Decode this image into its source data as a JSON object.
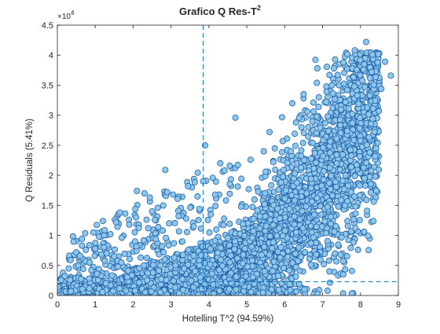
{
  "chart_data": {
    "type": "scatter",
    "title": "Grafico Q Res-T",
    "title_superscript": "2",
    "xlabel": "Hotelling T^2 (94.59%)",
    "ylabel": "Q Residuals (5.41%)",
    "xlim": [
      0,
      9
    ],
    "ylim": [
      0,
      45000
    ],
    "x_ticks": [
      0,
      1,
      2,
      3,
      4,
      5,
      6,
      7,
      8,
      9
    ],
    "y_ticks": [
      0,
      5000,
      10000,
      15000,
      20000,
      25000,
      30000,
      35000,
      40000,
      45000
    ],
    "y_tick_labels": [
      "0",
      "0.5",
      "1",
      "1.5",
      "2",
      "2.5",
      "3",
      "3.5",
      "4",
      "4.5"
    ],
    "y_exponent_prefix": "×10",
    "y_exponent_power": "4",
    "t2_limit": 3.85,
    "q_limit": 2300,
    "grid": false,
    "marker_face_color": "#8EC7EC",
    "marker_edge_color": "#1F5FA6",
    "limit_line_color": "#0072BD",
    "points": [
      [
        8.15,
        42200
      ],
      [
        7.85,
        40800
      ],
      [
        7.55,
        38800
      ],
      [
        8.45,
        38800
      ],
      [
        8.65,
        38900
      ],
      [
        8.1,
        38500
      ],
      [
        7.3,
        37800
      ],
      [
        8.8,
        36600
      ],
      [
        8.3,
        37200
      ],
      [
        7.9,
        37600
      ],
      [
        6.85,
        35400
      ],
      [
        6.5,
        33500
      ],
      [
        6.2,
        32000
      ],
      [
        5.6,
        27200
      ],
      [
        4.7,
        29600
      ],
      [
        5.1,
        22600
      ],
      [
        4.55,
        21600
      ],
      [
        4.3,
        22000
      ],
      [
        3.9,
        25000
      ],
      [
        2.85,
        20900
      ],
      [
        3.55,
        18000
      ],
      [
        3.85,
        19000
      ],
      [
        3.7,
        16500
      ],
      [
        2.1,
        17400
      ],
      [
        2.3,
        17000
      ],
      [
        2.9,
        17200
      ],
      [
        3.05,
        16800
      ],
      [
        3.45,
        18200
      ],
      [
        4.1,
        19600
      ],
      [
        4.55,
        16900
      ],
      [
        5.05,
        17700
      ],
      [
        2.5,
        14000
      ],
      [
        1.65,
        13800
      ],
      [
        1.55,
        12200
      ],
      [
        1.2,
        12400
      ],
      [
        1.9,
        11800
      ],
      [
        2.65,
        14600
      ],
      [
        3.2,
        13200
      ],
      [
        4.05,
        13500
      ],
      [
        4.85,
        14800
      ],
      [
        0.95,
        10500
      ],
      [
        1.1,
        9800
      ],
      [
        1.4,
        10200
      ],
      [
        1.7,
        9600
      ],
      [
        2.05,
        9000
      ],
      [
        2.6,
        9400
      ],
      [
        0.65,
        8300
      ],
      [
        0.75,
        7600
      ],
      [
        0.45,
        6800
      ],
      [
        0.5,
        7200
      ],
      [
        0.6,
        6600
      ],
      [
        1.0,
        7800
      ],
      [
        1.3,
        7000
      ],
      [
        0.35,
        5900
      ],
      [
        0.3,
        4500
      ],
      [
        0.15,
        3800
      ],
      [
        0.1,
        2600
      ],
      [
        0.2,
        3200
      ],
      [
        0.55,
        5000
      ],
      [
        0.85,
        5500
      ],
      [
        1.5,
        6500
      ],
      [
        1.25,
        5800
      ],
      [
        0.9,
        4200
      ],
      [
        1.05,
        3600
      ],
      [
        1.6,
        4800
      ],
      [
        2.2,
        6300
      ],
      [
        2.8,
        7200
      ],
      [
        3.3,
        9000
      ],
      [
        3.6,
        11500
      ],
      [
        3.4,
        12800
      ],
      [
        2.95,
        12000
      ],
      [
        2.4,
        11200
      ],
      [
        3.75,
        14400
      ],
      [
        4.4,
        12800
      ],
      [
        4.9,
        11900
      ],
      [
        5.3,
        17300
      ],
      [
        5.5,
        20600
      ],
      [
        5.7,
        22200
      ],
      [
        5.95,
        25700
      ],
      [
        6.3,
        28800
      ],
      [
        6.6,
        30600
      ],
      [
        6.9,
        33000
      ],
      [
        7.1,
        34800
      ],
      [
        7.4,
        36700
      ],
      [
        7.65,
        34200
      ],
      [
        8.05,
        35800
      ],
      [
        8.35,
        35100
      ],
      [
        8.55,
        34400
      ],
      [
        8.25,
        33300
      ],
      [
        7.95,
        31900
      ]
    ]
  }
}
